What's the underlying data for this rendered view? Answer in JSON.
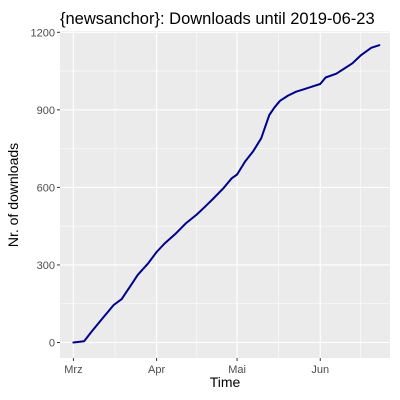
{
  "chart_data": {
    "type": "line",
    "title": "{newsanchor}: Downloads until 2019-06-23",
    "xlabel": "Time",
    "ylabel": "Nr. of downloads",
    "x_ticks": [
      {
        "label": "Mrz",
        "date": "2019-03-01"
      },
      {
        "label": "Apr",
        "date": "2019-04-01"
      },
      {
        "label": "Mai",
        "date": "2019-05-01"
      },
      {
        "label": "Jun",
        "date": "2019-06-01"
      }
    ],
    "xlim": [
      "2019-02-24",
      "2019-06-27"
    ],
    "y_ticks": [
      0,
      300,
      600,
      900,
      1200
    ],
    "ylim": [
      -60,
      1205
    ],
    "grid": true,
    "background": "#ebebeb",
    "line_color": "#00008b",
    "series": [
      {
        "x": [
          "2019-03-01",
          "2019-03-05",
          "2019-03-08",
          "2019-03-12",
          "2019-03-16",
          "2019-03-19",
          "2019-03-22",
          "2019-03-25",
          "2019-03-29",
          "2019-04-01",
          "2019-04-04",
          "2019-04-08",
          "2019-04-12",
          "2019-04-16",
          "2019-04-19",
          "2019-04-22",
          "2019-04-26",
          "2019-04-29",
          "2019-05-01",
          "2019-05-04",
          "2019-05-07",
          "2019-05-10",
          "2019-05-13",
          "2019-05-15",
          "2019-05-17",
          "2019-05-20",
          "2019-05-23",
          "2019-05-26",
          "2019-05-29",
          "2019-06-01",
          "2019-06-03",
          "2019-06-07",
          "2019-06-10",
          "2019-06-13",
          "2019-06-16",
          "2019-06-20",
          "2019-06-23"
        ],
        "y": [
          0,
          5,
          45,
          95,
          145,
          168,
          215,
          262,
          308,
          350,
          383,
          420,
          462,
          495,
          525,
          555,
          598,
          635,
          650,
          700,
          740,
          790,
          880,
          910,
          935,
          955,
          970,
          980,
          990,
          1000,
          1025,
          1040,
          1060,
          1080,
          1110,
          1140,
          1150
        ]
      }
    ]
  }
}
